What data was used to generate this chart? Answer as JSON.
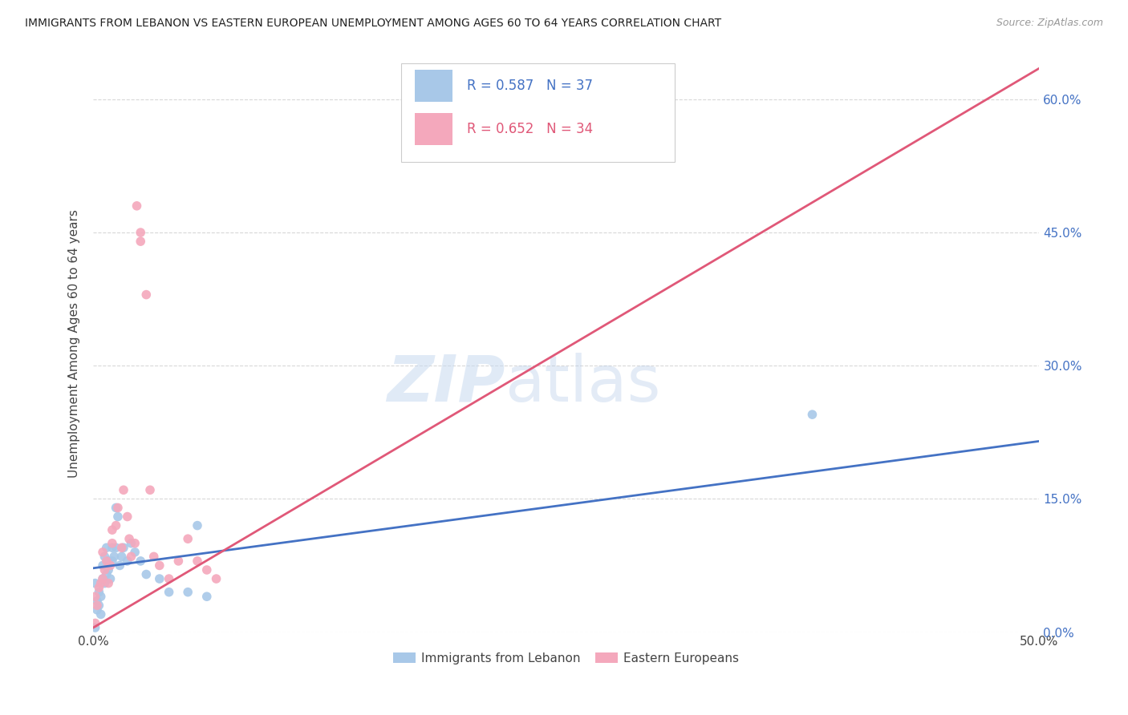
{
  "title": "IMMIGRANTS FROM LEBANON VS EASTERN EUROPEAN UNEMPLOYMENT AMONG AGES 60 TO 64 YEARS CORRELATION CHART",
  "source": "Source: ZipAtlas.com",
  "ylabel": "Unemployment Among Ages 60 to 64 years",
  "watermark_zip": "ZIP",
  "watermark_atlas": "atlas",
  "legend_blue_r": "R = 0.587",
  "legend_blue_n": "N = 37",
  "legend_pink_r": "R = 0.652",
  "legend_pink_n": "N = 34",
  "blue_color": "#a8c8e8",
  "pink_color": "#f4a8bc",
  "blue_line_color": "#4472c4",
  "pink_line_color": "#e05878",
  "blue_label": "Immigrants from Lebanon",
  "pink_label": "Eastern Europeans",
  "background_color": "#ffffff",
  "grid_color": "#d8d8d8",
  "xlim": [
    0.0,
    0.5
  ],
  "ylim": [
    0.0,
    0.65
  ],
  "xticks": [
    0.0,
    0.1,
    0.2,
    0.3,
    0.4,
    0.5
  ],
  "yticks": [
    0.0,
    0.15,
    0.3,
    0.45,
    0.6
  ],
  "blue_scatter_x": [
    0.001,
    0.002,
    0.002,
    0.003,
    0.003,
    0.004,
    0.004,
    0.005,
    0.005,
    0.006,
    0.006,
    0.007,
    0.007,
    0.008,
    0.008,
    0.009,
    0.01,
    0.01,
    0.011,
    0.012,
    0.012,
    0.013,
    0.014,
    0.015,
    0.016,
    0.018,
    0.02,
    0.022,
    0.025,
    0.028,
    0.035,
    0.04,
    0.05,
    0.055,
    0.06,
    0.38,
    0.001
  ],
  "blue_scatter_y": [
    0.055,
    0.035,
    0.025,
    0.045,
    0.03,
    0.04,
    0.02,
    0.06,
    0.075,
    0.055,
    0.085,
    0.065,
    0.095,
    0.07,
    0.08,
    0.06,
    0.08,
    0.095,
    0.085,
    0.095,
    0.14,
    0.13,
    0.075,
    0.085,
    0.095,
    0.08,
    0.1,
    0.09,
    0.08,
    0.065,
    0.06,
    0.045,
    0.045,
    0.12,
    0.04,
    0.245,
    0.005
  ],
  "pink_scatter_x": [
    0.001,
    0.002,
    0.003,
    0.004,
    0.005,
    0.005,
    0.006,
    0.007,
    0.008,
    0.009,
    0.01,
    0.01,
    0.012,
    0.013,
    0.015,
    0.016,
    0.018,
    0.019,
    0.02,
    0.022,
    0.023,
    0.025,
    0.025,
    0.028,
    0.03,
    0.032,
    0.035,
    0.04,
    0.045,
    0.05,
    0.055,
    0.06,
    0.065,
    0.001
  ],
  "pink_scatter_y": [
    0.04,
    0.03,
    0.05,
    0.055,
    0.06,
    0.09,
    0.07,
    0.08,
    0.055,
    0.075,
    0.1,
    0.115,
    0.12,
    0.14,
    0.095,
    0.16,
    0.13,
    0.105,
    0.085,
    0.1,
    0.48,
    0.44,
    0.45,
    0.38,
    0.16,
    0.085,
    0.075,
    0.06,
    0.08,
    0.105,
    0.08,
    0.07,
    0.06,
    0.01
  ],
  "blue_line_x": [
    0.0,
    0.5
  ],
  "blue_line_y": [
    0.072,
    0.215
  ],
  "pink_line_x": [
    0.0,
    0.5
  ],
  "pink_line_y": [
    0.005,
    0.635
  ]
}
